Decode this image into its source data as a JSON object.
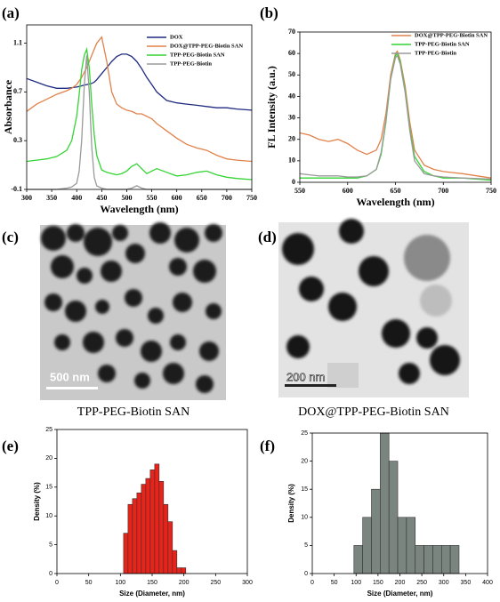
{
  "chart_data": [
    {
      "type": "line",
      "panel_label": "(a)",
      "xlabel": "Wavelength (nm)",
      "ylabel": "Absorbance",
      "xlim": [
        300,
        750
      ],
      "ylim": [
        -0.1,
        1.25
      ],
      "xticks": [
        300,
        350,
        400,
        450,
        500,
        550,
        600,
        650,
        700,
        750
      ],
      "yticks": [
        -0.1,
        0.3,
        0.7,
        1.1
      ],
      "legend": "upper right",
      "x": [
        300,
        320,
        340,
        360,
        380,
        390,
        400,
        405,
        410,
        415,
        420,
        425,
        430,
        435,
        440,
        450,
        460,
        470,
        480,
        490,
        500,
        510,
        520,
        530,
        540,
        550,
        560,
        580,
        600,
        620,
        640,
        660,
        680,
        700,
        720,
        750
      ],
      "series": [
        {
          "name": "DOX",
          "color": "#1f2a80",
          "values": [
            0.81,
            0.78,
            0.75,
            0.73,
            0.73,
            0.735,
            0.74,
            0.745,
            0.75,
            0.755,
            0.76,
            0.765,
            0.77,
            0.78,
            0.8,
            0.85,
            0.9,
            0.95,
            0.99,
            1.01,
            1.01,
            0.99,
            0.95,
            0.89,
            0.82,
            0.76,
            0.7,
            0.63,
            0.61,
            0.6,
            0.59,
            0.58,
            0.57,
            0.57,
            0.56,
            0.55
          ]
        },
        {
          "name": "DOX@TPP-PEG-Biotin SAN",
          "color": "#e0824a",
          "values": [
            0.54,
            0.6,
            0.64,
            0.68,
            0.71,
            0.73,
            0.76,
            0.79,
            0.82,
            0.86,
            0.9,
            0.95,
            1.0,
            1.05,
            1.1,
            1.15,
            0.95,
            0.7,
            0.6,
            0.57,
            0.55,
            0.54,
            0.52,
            0.52,
            0.5,
            0.48,
            0.44,
            0.38,
            0.32,
            0.27,
            0.24,
            0.22,
            0.18,
            0.15,
            0.14,
            0.13
          ]
        },
        {
          "name": "TPP-PEG-Biotin SAN",
          "color": "#33d433",
          "values": [
            0.13,
            0.14,
            0.15,
            0.17,
            0.22,
            0.3,
            0.5,
            0.68,
            0.88,
            1.0,
            1.05,
            0.9,
            0.6,
            0.35,
            0.18,
            0.06,
            0.04,
            0.03,
            0.02,
            0.03,
            0.05,
            0.09,
            0.11,
            0.07,
            0.03,
            0.05,
            0.07,
            0.04,
            0.01,
            0.02,
            0.04,
            0.05,
            0.02,
            0.0,
            -0.01,
            -0.02
          ]
        },
        {
          "name": "TPP-PEG-Biotin",
          "color": "#9a9a9a",
          "values": [
            -0.1,
            -0.1,
            -0.1,
            -0.1,
            -0.09,
            -0.08,
            -0.05,
            0.05,
            0.3,
            0.75,
            1.0,
            0.7,
            0.25,
            0.0,
            -0.07,
            -0.09,
            -0.1,
            -0.1,
            -0.1,
            -0.1,
            -0.1,
            -0.09,
            -0.07,
            -0.09,
            -0.1,
            -0.1,
            -0.1,
            -0.1,
            -0.1,
            -0.1,
            -0.1,
            -0.1,
            -0.1,
            -0.1,
            -0.1,
            -0.1
          ]
        }
      ]
    },
    {
      "type": "line",
      "panel_label": "(b)",
      "xlabel": "Wavelength (nm)",
      "ylabel": "FL Intensity (a.u.)",
      "xlim": [
        550,
        750
      ],
      "ylim": [
        0,
        70
      ],
      "xticks": [
        550,
        600,
        650,
        700,
        750
      ],
      "yticks": [
        0,
        10,
        20,
        30,
        40,
        50,
        60,
        70
      ],
      "legend": "upper right",
      "x": [
        550,
        560,
        570,
        580,
        590,
        600,
        610,
        620,
        630,
        635,
        640,
        645,
        650,
        652,
        655,
        660,
        665,
        670,
        680,
        690,
        700,
        720,
        750
      ],
      "series": [
        {
          "name": "DOX@TPP-PEG-Biotin SAN",
          "color": "#e0824a",
          "values": [
            23,
            22,
            20,
            19,
            20,
            18,
            15,
            13,
            15,
            20,
            32,
            50,
            60,
            61,
            57,
            45,
            28,
            15,
            8,
            6,
            5,
            4,
            2
          ]
        },
        {
          "name": "TPP-PEG-Biotin SAN",
          "color": "#33d433",
          "values": [
            2,
            2,
            2,
            2,
            2,
            2,
            2,
            3,
            6,
            13,
            28,
            48,
            59,
            60,
            56,
            43,
            25,
            12,
            5,
            3,
            2,
            2,
            1
          ]
        },
        {
          "name": "TPP-PEG-Biotin",
          "color": "#9a9a9a",
          "values": [
            4,
            3.5,
            3,
            3,
            3,
            2.5,
            2.5,
            3,
            6,
            14,
            29,
            48,
            58,
            59,
            55,
            42,
            24,
            10,
            4,
            3,
            2.5,
            2,
            1.5
          ]
        }
      ]
    },
    {
      "type": "histogram",
      "panel_label": "(e)",
      "xlabel": "Size (Diameter, nm)",
      "ylabel": "Density (%)",
      "xlim": [
        0,
        300
      ],
      "ylim": [
        0,
        25
      ],
      "xticks": [
        0,
        50,
        100,
        150,
        200,
        250,
        300
      ],
      "yticks": [
        0,
        5,
        10,
        15,
        20,
        25
      ],
      "color": "#e8231a",
      "bins": [
        105,
        112,
        119,
        126,
        133,
        140,
        147,
        154,
        161,
        168,
        175,
        182,
        189,
        196,
        203
      ],
      "values": [
        7,
        12,
        13,
        14,
        15.5,
        16.5,
        18,
        19,
        16,
        12,
        9,
        4,
        1,
        1
      ]
    },
    {
      "type": "histogram",
      "panel_label": "(f)",
      "xlabel": "Size (Diameter, nm)",
      "ylabel": "Density (%)",
      "xlim": [
        0,
        400
      ],
      "ylim": [
        0,
        25
      ],
      "xticks": [
        0,
        50,
        100,
        150,
        200,
        250,
        300,
        350,
        400
      ],
      "yticks": [
        0,
        5,
        10,
        15,
        20,
        25
      ],
      "color": "#7b8580",
      "bins": [
        95,
        115,
        135,
        155,
        175,
        195,
        215,
        235,
        255,
        275,
        295,
        315,
        335
      ],
      "values": [
        5,
        10,
        15,
        25,
        20,
        10,
        10,
        5,
        5,
        5,
        5,
        5
      ]
    }
  ],
  "images": [
    {
      "panel_label": "(c)",
      "scale_bar": "500 nm",
      "caption": "TPP-PEG-Biotin SAN"
    },
    {
      "panel_label": "(d)",
      "scale_bar": "200 nm",
      "caption": "DOX@TPP-PEG-Biotin SAN"
    }
  ]
}
